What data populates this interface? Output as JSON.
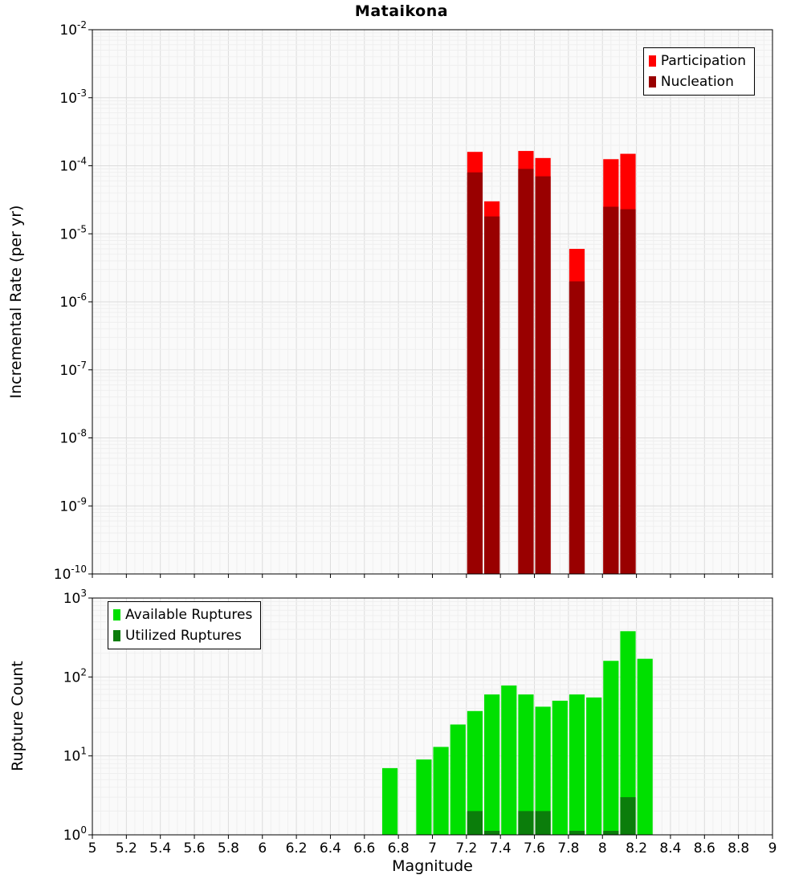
{
  "title": "Mataikona",
  "xlabel": "Magnitude",
  "x_tick_labels": [
    "5",
    "5.2",
    "5.4",
    "5.6",
    "5.8",
    "6",
    "6.2",
    "6.4",
    "6.6",
    "6.8",
    "7",
    "7.2",
    "7.4",
    "7.6",
    "7.8",
    "8",
    "8.2",
    "8.4",
    "8.6",
    "8.8",
    "9"
  ],
  "chart_data": [
    {
      "type": "bar",
      "title": "Mataikona",
      "ylabel": "Incremental Rate (per yr)",
      "xlabel": "Magnitude",
      "x_range": [
        5,
        9
      ],
      "y_log_range": [
        -10,
        -2
      ],
      "y_tick_exponents": [
        -2,
        -3,
        -4,
        -5,
        -6,
        -7,
        -8,
        -9,
        -10
      ],
      "bar_width": 0.1,
      "grid": true,
      "legend_position": "top-right",
      "series": [
        {
          "name": "Participation",
          "color": "#ff0000",
          "x": [
            7.25,
            7.35,
            7.55,
            7.65,
            7.85,
            8.05,
            8.15
          ],
          "values": [
            0.00016,
            3e-05,
            0.000165,
            0.00013,
            6e-06,
            0.000125,
            0.00015
          ]
        },
        {
          "name": "Nucleation",
          "color": "#990000",
          "x": [
            7.25,
            7.35,
            7.55,
            7.65,
            7.85,
            8.05,
            8.15
          ],
          "values": [
            8e-05,
            1.8e-05,
            9e-05,
            7e-05,
            2e-06,
            2.5e-05,
            2.3e-05
          ]
        }
      ]
    },
    {
      "type": "bar",
      "ylabel": "Rupture Count",
      "xlabel": "Magnitude",
      "x_range": [
        5,
        9
      ],
      "y_log_range": [
        0,
        3
      ],
      "y_tick_exponents": [
        3,
        2,
        1,
        0
      ],
      "bar_width": 0.1,
      "grid": true,
      "legend_position": "top-left",
      "series": [
        {
          "name": "Available Ruptures",
          "color": "#00e000",
          "x": [
            6.75,
            6.95,
            7.05,
            7.15,
            7.25,
            7.35,
            7.45,
            7.55,
            7.65,
            7.75,
            7.85,
            7.95,
            8.05,
            8.15,
            8.25
          ],
          "values": [
            7,
            9,
            13,
            25,
            37,
            60,
            78,
            60,
            42,
            50,
            60,
            55,
            160,
            380,
            170
          ]
        },
        {
          "name": "Utilized Ruptures",
          "color": "#0b7d0b",
          "x": [
            7.25,
            7.35,
            7.55,
            7.65,
            7.85,
            8.05,
            8.15
          ],
          "values": [
            2,
            1,
            2,
            2,
            1,
            1,
            3
          ]
        }
      ]
    }
  ]
}
